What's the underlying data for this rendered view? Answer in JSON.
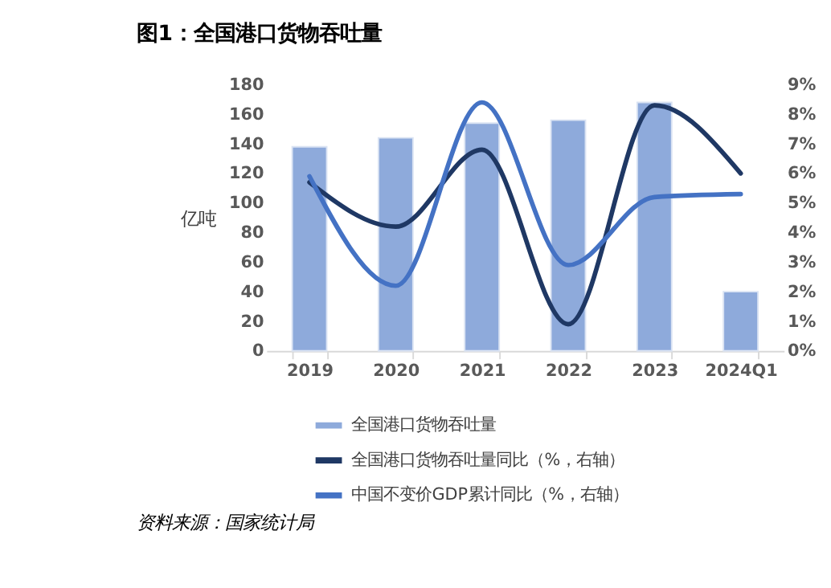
{
  "chart_data": {
    "type": "bar",
    "title": "图1：全国港口货物吞吐量",
    "ylabel": "亿吨",
    "categories": [
      "2019",
      "2020",
      "2021",
      "2022",
      "2023",
      "2024Q1"
    ],
    "series": [
      {
        "name": "全国港口货物吞吐量",
        "color": "#8eaadb",
        "values": [
          138,
          144,
          154,
          156,
          168,
          40
        ]
      },
      {
        "name": "全国港口货物吞吐量同比（%，右轴）",
        "type": "line",
        "axis": "y2",
        "color": "#1f3864",
        "values": [
          5.7,
          4.2,
          6.8,
          0.9,
          8.3,
          6.0
        ]
      },
      {
        "name": "中国不变价GDP累计同比（%，右轴）",
        "type": "line",
        "axis": "y2",
        "color": "#4472c4",
        "values": [
          5.9,
          2.2,
          8.4,
          2.9,
          5.2,
          5.3
        ]
      }
    ],
    "ylim": [
      0,
      180
    ],
    "yticks": [
      0,
      20,
      40,
      60,
      80,
      100,
      120,
      140,
      160,
      180
    ],
    "y2lim": [
      0,
      9
    ],
    "y2ticks": [
      {
        "value": 0,
        "label": "0%"
      },
      {
        "value": 1,
        "label": "1%"
      },
      {
        "value": 2,
        "label": "2%"
      },
      {
        "value": 3,
        "label": "3%"
      },
      {
        "value": 4,
        "label": "4%"
      },
      {
        "value": 5,
        "label": "5%"
      },
      {
        "value": 6,
        "label": "6%"
      },
      {
        "value": 7,
        "label": "7%"
      },
      {
        "value": 8,
        "label": "8%"
      },
      {
        "value": 9,
        "label": "9%"
      }
    ],
    "grid": false,
    "legend": "bottom",
    "annotations": [
      "资料来源：国家统计局"
    ]
  }
}
